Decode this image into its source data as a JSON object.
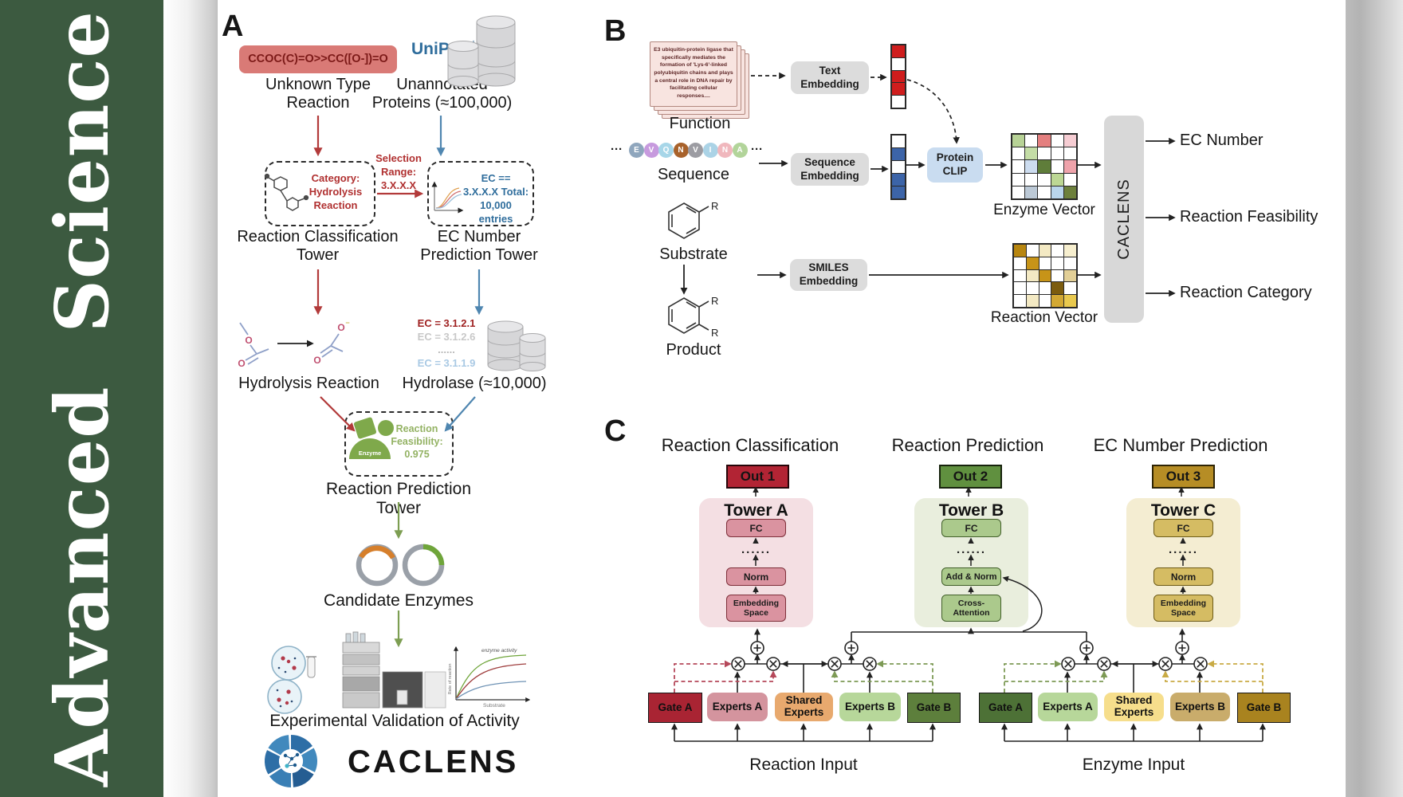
{
  "journal": {
    "name": "Advanced Science"
  },
  "colors": {
    "journal_green": "#3c5a40",
    "out1": "#b22434",
    "out2": "#60903f",
    "out3": "#b68d25",
    "accent_red": "#b23a3a",
    "accent_blue": "#4f86b0",
    "accent_green": "#7d9e52"
  },
  "panelA": {
    "label": "A",
    "smiles": "CCOC(C)=O>>CC([O-])=O",
    "unknown_type": "Unknown Type Reaction",
    "uniprot": "UniProt",
    "unannotated": "Unannotated Proteins (≈100,000)",
    "selection": "Selection Range: 3.X.X.X",
    "category_box": "Category: Hydrolysis Reaction",
    "ec_box": "EC == 3.X.X.X Total: 10,000 entries",
    "reaction_classification_tower": "Reaction Classification Tower",
    "ec_number_prediction_tower": "EC Number Prediction Tower",
    "ec_list": [
      {
        "text": "EC = 3.1.2.1",
        "color": "#9e1f1f"
      },
      {
        "text": "EC = 3.1.2.6",
        "color": "#c8c8c8"
      },
      {
        "text": "......",
        "color": "#b8b8b8"
      },
      {
        "text": "EC = 3.1.1.9",
        "color": "#a9c9e4"
      }
    ],
    "hydrolysis_reaction": "Hydrolysis Reaction",
    "hydrolase": "Hydrolase (≈10,000)",
    "enzyme_badge": "Enzyme",
    "feasibility": "Reaction Feasibility: 0.975",
    "reaction_prediction_tower": "Reaction Prediction Tower",
    "candidate_enzymes": "Candidate Enzymes",
    "experimental_validation": "Experimental Validation of Activity",
    "brand": "CACLENS",
    "atom_o": "O",
    "charge_minus": "−",
    "kinetics_chart": {
      "type": "line",
      "ylabel": "Rate of reaction",
      "xlabel": "Substrate",
      "annotation": "enzyme activity",
      "series": [
        "green",
        "dark-red",
        "blue"
      ]
    }
  },
  "panelB": {
    "label": "B",
    "function_text": "E3 ubiquitin-protein ligase that specifically mediates the formation of 'Lys-6'-linked polyubiquitin chains and plays a central role in DNA repair by facilitating cellular responses....",
    "function_label": "Function",
    "ellipsis": "···",
    "sequence_label": "Sequence",
    "residues": [
      {
        "letter": "E",
        "color": "#8fa6bd"
      },
      {
        "letter": "V",
        "color": "#c79ade"
      },
      {
        "letter": "Q",
        "color": "#a7d6e8"
      },
      {
        "letter": "N",
        "color": "#a8622b"
      },
      {
        "letter": "V",
        "color": "#9c9ca2"
      },
      {
        "letter": "I",
        "color": "#abd3e6"
      },
      {
        "letter": "N",
        "color": "#f0b7bd"
      },
      {
        "letter": "A",
        "color": "#b2d49a"
      }
    ],
    "substrate_label": "Substrate",
    "product_label": "Product",
    "r_group": "R",
    "text_embedding": "Text Embedding",
    "sequence_embedding": "Sequence Embedding",
    "smiles_embedding": "SMILES Embedding",
    "protein_clip": "Protein CLIP",
    "text_vector": [
      "#cf1d1d",
      "#ffffff",
      "#cf1d1d",
      "#cf1d1d",
      "#ffffff"
    ],
    "sequence_vector": [
      "#ffffff",
      "#3c64a8",
      "#ffffff",
      "#3c64a8",
      "#3c64a8"
    ],
    "enzyme_vector_label": "Enzyme Vector",
    "reaction_vector_label": "Reaction Vector",
    "enzyme_vector_grid": [
      [
        "#b7d296",
        "#ffffff",
        "#e47f7f",
        "#ffffff",
        "#f6cdd3"
      ],
      [
        "#ffffff",
        "#c4dda6",
        "#ffffff",
        "#ffffff",
        "#ffffff"
      ],
      [
        "#ffffff",
        "#ccdcef",
        "#5f7d3a",
        "#ffffff",
        "#efa3ab"
      ],
      [
        "#ffffff",
        "#ffffff",
        "#ffffff",
        "#bcd794",
        "#ffffff"
      ],
      [
        "#ffffff",
        "#bcc9d6",
        "#ffffff",
        "#b9d5eb",
        "#6d803c"
      ]
    ],
    "reaction_vector_grid": [
      [
        "#b8860f",
        "#ffffff",
        "#f3e9c3",
        "#ffffff",
        "#f7efcf"
      ],
      [
        "#ffffff",
        "#c79418",
        "#ffffff",
        "#ffffff",
        "#ffffff"
      ],
      [
        "#ffffff",
        "#f3e9c3",
        "#c79418",
        "#ffffff",
        "#e2cf97"
      ],
      [
        "#ffffff",
        "#ffffff",
        "#ffffff",
        "#7c5c0e",
        "#ffffff"
      ],
      [
        "#ffffff",
        "#f3e9c3",
        "#ffffff",
        "#d2a833",
        "#e9c94e"
      ]
    ],
    "caclens": "CACLENS",
    "outputs": [
      "EC Number",
      "Reaction Feasibility",
      "Reaction Category"
    ]
  },
  "panelC": {
    "label": "C",
    "headings": [
      "Reaction Classification",
      "Reaction Prediction",
      "EC Number Prediction"
    ],
    "towers": [
      {
        "out": "Out 1",
        "name": "Tower A",
        "fc": "FC",
        "dots": "......",
        "mid": "Norm",
        "bottom": "Embedding Space"
      },
      {
        "out": "Out 2",
        "name": "Tower B",
        "fc": "FC",
        "dots": "......",
        "mid": "Add & Norm",
        "bottom": "Cross-Attention"
      },
      {
        "out": "Out 3",
        "name": "Tower C",
        "fc": "FC",
        "dots": "......",
        "mid": "Norm",
        "bottom": "Embedding Space"
      }
    ],
    "moe": [
      {
        "input": "Reaction Input",
        "boxes": [
          {
            "label": "Gate A",
            "bg": "#a92433"
          },
          {
            "label": "Experts A",
            "bg": "#d4949e"
          },
          {
            "label": "Shared Experts",
            "bg": "#e8a96e"
          },
          {
            "label": "Experts B",
            "bg": "#b7d79a"
          },
          {
            "label": "Gate B",
            "bg": "#5d7f3c"
          }
        ]
      },
      {
        "input": "Enzyme Input",
        "boxes": [
          {
            "label": "Gate A",
            "bg": "#4d7136"
          },
          {
            "label": "Experts A",
            "bg": "#b7d79a"
          },
          {
            "label": "Shared Experts",
            "bg": "#f6de8c"
          },
          {
            "label": "Experts B",
            "bg": "#c9ac6b"
          },
          {
            "label": "Gate B",
            "bg": "#a9831f"
          }
        ]
      }
    ]
  }
}
